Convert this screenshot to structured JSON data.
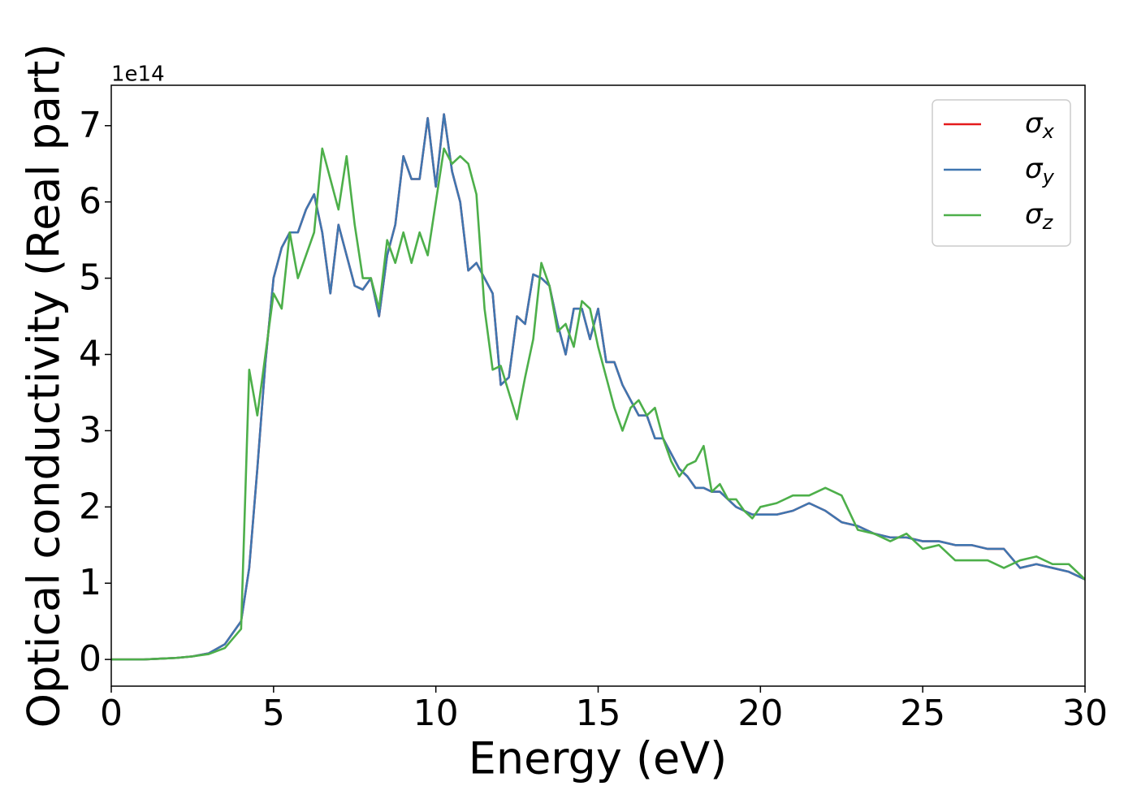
{
  "chart_data": {
    "type": "line",
    "x_label": "Energy (eV)",
    "y_label": "Optical conductivity (Real part)",
    "y_offset_label": "1e14",
    "xlim": [
      0,
      30
    ],
    "ylim": [
      -0.35,
      7.53
    ],
    "xticks": [
      0,
      5,
      10,
      15,
      20,
      25,
      30
    ],
    "yticks": [
      0,
      1,
      2,
      3,
      4,
      5,
      6,
      7
    ],
    "legend": "upper right",
    "x": [
      0,
      0.5,
      1,
      1.5,
      2,
      2.5,
      3,
      3.5,
      4,
      4.25,
      4.5,
      4.75,
      5,
      5.25,
      5.5,
      5.75,
      6,
      6.25,
      6.5,
      6.75,
      7,
      7.25,
      7.5,
      7.75,
      8,
      8.25,
      8.5,
      8.75,
      9,
      9.25,
      9.5,
      9.75,
      10,
      10.25,
      10.5,
      10.75,
      11,
      11.25,
      11.5,
      11.75,
      12,
      12.25,
      12.5,
      12.75,
      13,
      13.25,
      13.5,
      13.75,
      14,
      14.25,
      14.5,
      14.75,
      15,
      15.25,
      15.5,
      15.75,
      16,
      16.25,
      16.5,
      16.75,
      17,
      17.25,
      17.5,
      17.75,
      18,
      18.25,
      18.5,
      18.75,
      19,
      19.25,
      19.5,
      19.75,
      20,
      20.5,
      21,
      21.5,
      22,
      22.5,
      23,
      23.5,
      24,
      24.5,
      25,
      25.5,
      26,
      26.5,
      27,
      27.5,
      28,
      28.5,
      29,
      29.5,
      30
    ],
    "series": [
      {
        "name": "σx",
        "color": "#e41a1c",
        "values": [
          0,
          0,
          0,
          0.01,
          0.02,
          0.04,
          0.08,
          0.2,
          0.5,
          1.2,
          2.5,
          3.9,
          5.0,
          5.4,
          5.6,
          5.6,
          5.9,
          6.1,
          5.6,
          4.8,
          5.7,
          5.3,
          4.9,
          4.85,
          5.0,
          4.5,
          5.3,
          5.7,
          6.6,
          6.3,
          6.3,
          7.1,
          6.2,
          7.15,
          6.4,
          6.0,
          5.1,
          5.2,
          5.0,
          4.8,
          3.6,
          3.7,
          4.5,
          4.4,
          5.05,
          5.0,
          4.9,
          4.4,
          4.0,
          4.6,
          4.6,
          4.2,
          4.6,
          3.9,
          3.9,
          3.6,
          3.4,
          3.2,
          3.2,
          2.9,
          2.9,
          2.7,
          2.5,
          2.4,
          2.25,
          2.25,
          2.2,
          2.2,
          2.1,
          2.0,
          1.95,
          1.9,
          1.9,
          1.9,
          1.95,
          2.05,
          1.95,
          1.8,
          1.75,
          1.65,
          1.6,
          1.6,
          1.55,
          1.55,
          1.5,
          1.5,
          1.45,
          1.45,
          1.2,
          1.25,
          1.2,
          1.15,
          1.05
        ]
      },
      {
        "name": "σy",
        "color": "#3f76b0",
        "values": [
          0,
          0,
          0,
          0.01,
          0.02,
          0.04,
          0.08,
          0.2,
          0.5,
          1.2,
          2.5,
          3.9,
          5.0,
          5.4,
          5.6,
          5.6,
          5.9,
          6.1,
          5.6,
          4.8,
          5.7,
          5.3,
          4.9,
          4.85,
          5.0,
          4.5,
          5.3,
          5.7,
          6.6,
          6.3,
          6.3,
          7.1,
          6.2,
          7.15,
          6.4,
          6.0,
          5.1,
          5.2,
          5.0,
          4.8,
          3.6,
          3.7,
          4.5,
          4.4,
          5.05,
          5.0,
          4.9,
          4.4,
          4.0,
          4.6,
          4.6,
          4.2,
          4.6,
          3.9,
          3.9,
          3.6,
          3.4,
          3.2,
          3.2,
          2.9,
          2.9,
          2.7,
          2.5,
          2.4,
          2.25,
          2.25,
          2.2,
          2.2,
          2.1,
          2.0,
          1.95,
          1.9,
          1.9,
          1.9,
          1.95,
          2.05,
          1.95,
          1.8,
          1.75,
          1.65,
          1.6,
          1.6,
          1.55,
          1.55,
          1.5,
          1.5,
          1.45,
          1.45,
          1.2,
          1.25,
          1.2,
          1.15,
          1.05
        ]
      },
      {
        "name": "σz",
        "color": "#4daf4a",
        "values": [
          0,
          0,
          0,
          0.01,
          0.02,
          0.04,
          0.07,
          0.15,
          0.4,
          3.8,
          3.2,
          4.0,
          4.8,
          4.6,
          5.6,
          5.0,
          5.3,
          5.6,
          6.7,
          6.3,
          5.9,
          6.6,
          5.7,
          5.0,
          5.0,
          4.6,
          5.5,
          5.2,
          5.6,
          5.2,
          5.6,
          5.3,
          6.0,
          6.7,
          6.5,
          6.6,
          6.5,
          6.1,
          4.6,
          3.8,
          3.85,
          3.5,
          3.15,
          3.7,
          4.2,
          5.2,
          4.9,
          4.3,
          4.4,
          4.1,
          4.7,
          4.6,
          4.1,
          3.7,
          3.3,
          3.0,
          3.3,
          3.4,
          3.2,
          3.3,
          2.9,
          2.6,
          2.4,
          2.55,
          2.6,
          2.8,
          2.2,
          2.3,
          2.1,
          2.1,
          1.95,
          1.85,
          2.0,
          2.05,
          2.15,
          2.15,
          2.25,
          2.15,
          1.7,
          1.65,
          1.55,
          1.65,
          1.45,
          1.5,
          1.3,
          1.3,
          1.3,
          1.2,
          1.3,
          1.35,
          1.25,
          1.25,
          1.05
        ]
      }
    ]
  }
}
